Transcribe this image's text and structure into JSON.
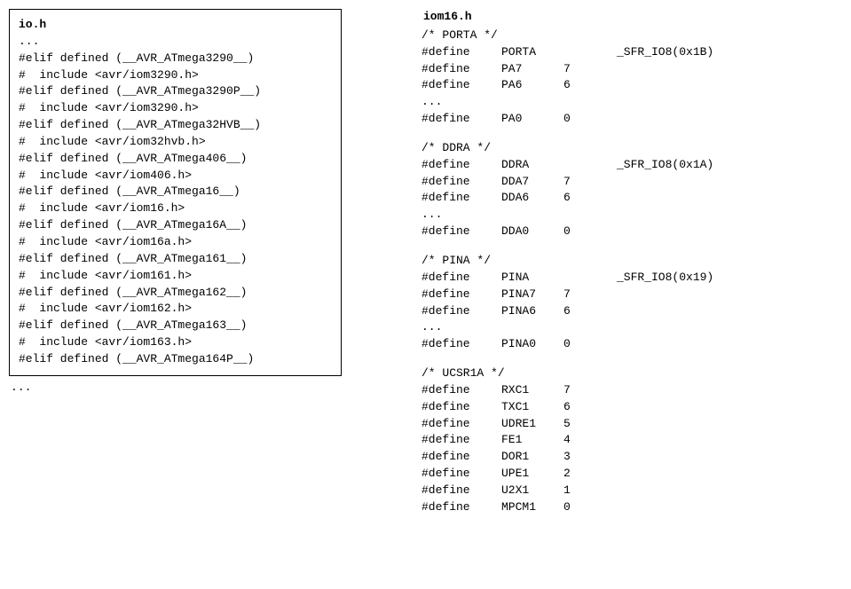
{
  "left": {
    "title": "io.h",
    "dots_top": "...",
    "lines": [
      "#elif defined (__AVR_ATmega3290__)",
      "#  include <avr/iom3290.h>",
      "#elif defined (__AVR_ATmega3290P__)",
      "#  include <avr/iom3290.h>",
      "#elif defined (__AVR_ATmega32HVB__)",
      "#  include <avr/iom32hvb.h>",
      "#elif defined (__AVR_ATmega406__)",
      "#  include <avr/iom406.h>",
      "#elif defined (__AVR_ATmega16__)",
      "#  include <avr/iom16.h>",
      "#elif defined (__AVR_ATmega16A__)",
      "#  include <avr/iom16a.h>",
      "#elif defined (__AVR_ATmega161__)",
      "#  include <avr/iom161.h>",
      "#elif defined (__AVR_ATmega162__)",
      "#  include <avr/iom162.h>",
      "#elif defined (__AVR_ATmega163__)",
      "#  include <avr/iom163.h>",
      "#elif defined (__AVR_ATmega164P__)"
    ],
    "dots_bottom": "..."
  },
  "right": {
    "title": "iom16.h",
    "sections": [
      {
        "comment": "/* PORTA */",
        "wide": [
          {
            "a": "#define ",
            "b": "PORTA",
            "c": "_SFR_IO8(0x1B)"
          }
        ],
        "rows": [
          {
            "a": "#define ",
            "b": "PA7",
            "c": "7"
          },
          {
            "a": "#define ",
            "b": "PA6",
            "c": "6"
          },
          {
            "a": "...",
            "b": "",
            "c": ""
          },
          {
            "a": "#define ",
            "b": "PA0",
            "c": "0"
          }
        ]
      },
      {
        "comment": "/* DDRA */",
        "wide": [
          {
            "a": "#define ",
            "b": "DDRA",
            "c": "_SFR_IO8(0x1A)"
          }
        ],
        "rows": [
          {
            "a": "#define ",
            "b": "DDA7",
            "c": "7"
          },
          {
            "a": "#define ",
            "b": "DDA6",
            "c": "6"
          },
          {
            "a": "...",
            "b": "",
            "c": ""
          },
          {
            "a": "#define ",
            "b": "DDA0",
            "c": "0"
          }
        ]
      },
      {
        "comment": "/* PINA */",
        "wide": [
          {
            "a": "#define ",
            "b": "PINA",
            "c": "_SFR_IO8(0x19)"
          }
        ],
        "rows": [
          {
            "a": "#define ",
            "b": "PINA7",
            "c": "7"
          },
          {
            "a": "#define ",
            "b": "PINA6",
            "c": "6"
          },
          {
            "a": "...",
            "b": "",
            "c": ""
          },
          {
            "a": "#define ",
            "b": "PINA0",
            "c": "0"
          }
        ]
      },
      {
        "comment": "/* UCSR1A */",
        "wide": [],
        "rows": [
          {
            "a": "#define ",
            "b": "RXC1",
            "c": "7"
          },
          {
            "a": "#define ",
            "b": "TXC1",
            "c": "6"
          },
          {
            "a": "#define ",
            "b": "UDRE1",
            "c": "5"
          },
          {
            "a": "#define ",
            "b": "FE1",
            "c": "4"
          },
          {
            "a": "#define ",
            "b": "DOR1",
            "c": "3"
          },
          {
            "a": "#define ",
            "b": "UPE1",
            "c": "2"
          },
          {
            "a": "#define ",
            "b": "U2X1",
            "c": "1"
          },
          {
            "a": "#define ",
            "b": "MPCM1",
            "c": "0"
          }
        ]
      }
    ]
  }
}
